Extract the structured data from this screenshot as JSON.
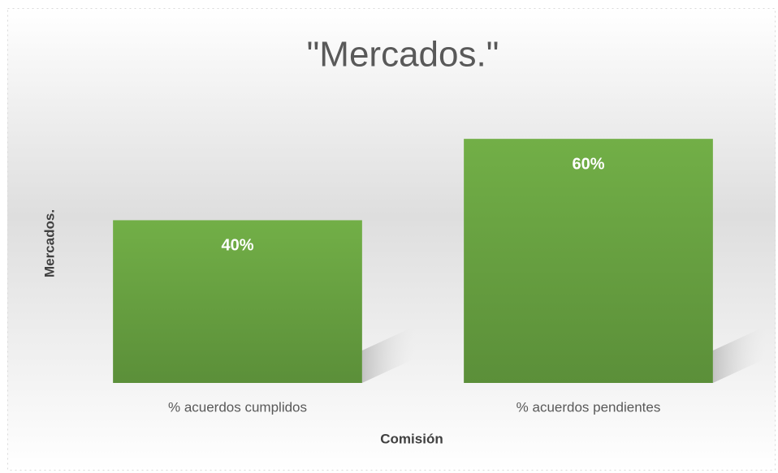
{
  "chart_data": {
    "type": "bar",
    "title": "\"Mercados.\"",
    "x_label": "Comisión",
    "y_label": "Mercados.",
    "categories": [
      "% acuerdos cumplidos",
      "% acuerdos pendientes"
    ],
    "values": [
      40,
      60
    ],
    "value_labels": [
      "40%",
      "60%"
    ],
    "color": "#70ad47",
    "ylim": [
      0,
      70
    ]
  }
}
